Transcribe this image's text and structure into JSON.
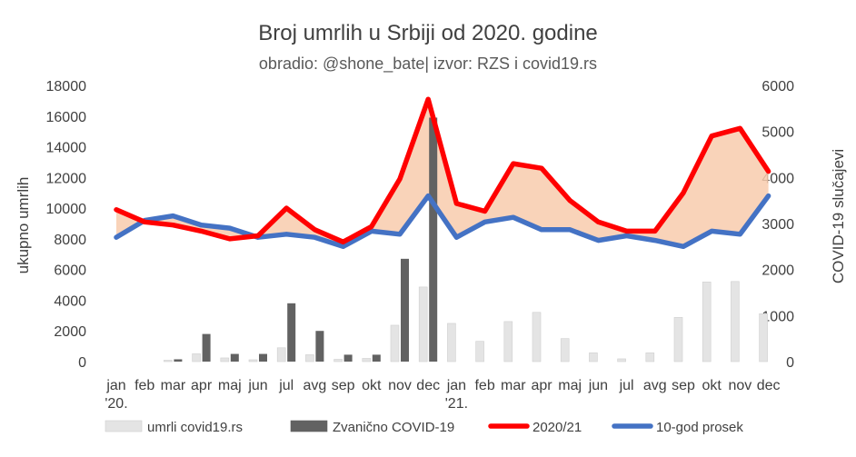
{
  "chart_data": {
    "type": "bar+line+area",
    "title": "Broj umrlih u Srbiji od 2020. godine",
    "subtitle": "obradio: @shone_bate| izvor: RZS i covid19.rs",
    "ylabel_left": "ukupno umrlih",
    "ylabel_right": "COVID-19 slučajevi",
    "ylim_left": [
      0,
      18000
    ],
    "ylim_right": [
      0,
      6000
    ],
    "yticks_left": [
      "0",
      "2000",
      "4000",
      "6000",
      "8000",
      "10000",
      "12000",
      "14000",
      "16000",
      "18000"
    ],
    "yticks_right": [
      "0",
      "1000",
      "2000",
      "3000",
      "4000",
      "5000",
      "6000"
    ],
    "categories": [
      "jan",
      "feb",
      "mar",
      "apr",
      "maj",
      "jun",
      "jul",
      "avg",
      "sep",
      "okt",
      "nov",
      "dec",
      "jan",
      "feb",
      "mar",
      "apr",
      "maj",
      "jun",
      "jul",
      "avg",
      "sep",
      "okt",
      "nov",
      "dec"
    ],
    "year_labels": [
      {
        "index": 0,
        "label": "'20."
      },
      {
        "index": 12,
        "label": "'21."
      }
    ],
    "series": [
      {
        "name": "umrli covid19.rs",
        "type": "bar",
        "axis": "right",
        "color": "#e4e4e4",
        "values": [
          0,
          0,
          30,
          170,
          80,
          40,
          300,
          150,
          50,
          70,
          790,
          1620,
          830,
          440,
          870,
          1070,
          500,
          190,
          60,
          190,
          960,
          1730,
          1740,
          1040
        ]
      },
      {
        "name": "Zvanično COVID-19",
        "type": "bar",
        "axis": "left",
        "color": "#626262",
        "values": [
          0,
          0,
          150,
          1800,
          500,
          500,
          3800,
          2000,
          450,
          450,
          6700,
          15900,
          0,
          0,
          0,
          0,
          0,
          0,
          0,
          0,
          0,
          0,
          0,
          0
        ]
      },
      {
        "name": "2020/21",
        "type": "line",
        "axis": "left",
        "color": "#ff0000",
        "values": [
          9900,
          9100,
          8900,
          8500,
          8000,
          8200,
          10000,
          8600,
          7800,
          8800,
          11900,
          17100,
          10300,
          9800,
          12900,
          12600,
          10500,
          9100,
          8500,
          8500,
          11000,
          14700,
          15200,
          12400
        ]
      },
      {
        "name": "10-god prosek",
        "type": "line",
        "axis": "left",
        "color": "#4472c4",
        "values": [
          8100,
          9200,
          9500,
          8900,
          8700,
          8100,
          8300,
          8100,
          7500,
          8500,
          8300,
          10800,
          8100,
          9100,
          9400,
          8600,
          8600,
          7900,
          8200,
          7900,
          7500,
          8500,
          8300,
          10800
        ]
      }
    ],
    "legend": {
      "position": "bottom",
      "items": [
        {
          "label": "umrli covid19.rs",
          "color": "#e4e4e4",
          "shape": "bar"
        },
        {
          "label": "Zvanično COVID-19",
          "color": "#626262",
          "shape": "bar"
        },
        {
          "label": "2020/21",
          "color": "#ff0000",
          "shape": "line"
        },
        {
          "label": "10-god prosek",
          "color": "#4472c4",
          "shape": "line"
        }
      ]
    },
    "fill_between": {
      "upper": "2020/21",
      "lower": "10-god prosek",
      "color": "#f8cbad"
    },
    "grid": false
  }
}
